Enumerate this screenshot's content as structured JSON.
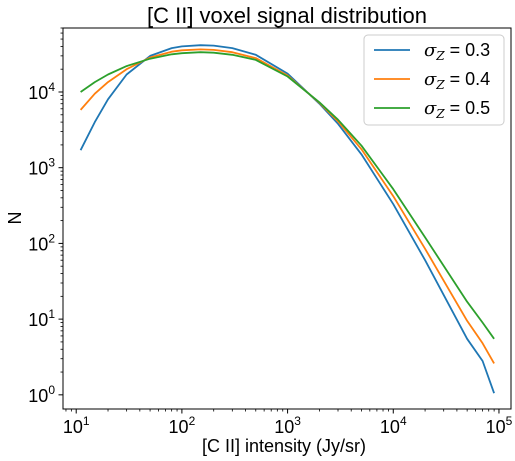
{
  "chart_data": {
    "type": "line",
    "title": "[C II] voxel signal distribution",
    "xlabel": "[C II] intensity (Jy/sr)",
    "ylabel": "N",
    "xscale": "log",
    "yscale": "log",
    "xlim": [
      7.5,
      130000
    ],
    "ylim": [
      0.65,
      70000
    ],
    "grid": false,
    "legend_position": "top-right",
    "x_ticks": [
      {
        "base": "10",
        "exp": "1",
        "value": 10
      },
      {
        "base": "10",
        "exp": "2",
        "value": 100
      },
      {
        "base": "10",
        "exp": "3",
        "value": 1000
      },
      {
        "base": "10",
        "exp": "4",
        "value": 10000
      },
      {
        "base": "10",
        "exp": "5",
        "value": 100000
      }
    ],
    "y_ticks": [
      {
        "base": "10",
        "exp": "0",
        "value": 1
      },
      {
        "base": "10",
        "exp": "1",
        "value": 10
      },
      {
        "base": "10",
        "exp": "2",
        "value": 100
      },
      {
        "base": "10",
        "exp": "3",
        "value": 1000
      },
      {
        "base": "10",
        "exp": "4",
        "value": 10000
      }
    ],
    "series": [
      {
        "symbol": "σ",
        "subscript": "Z",
        "suffix": " = 0.3",
        "color": "#1f77b4",
        "x": [
          11,
          15,
          20,
          30,
          50,
          80,
          100,
          150,
          200,
          300,
          500,
          1000,
          2000,
          3000,
          5000,
          10000,
          20000,
          50000,
          70000,
          90000
        ],
        "y": [
          1700,
          4000,
          8000,
          17000,
          30000,
          38000,
          40000,
          41500,
          41000,
          38000,
          31000,
          17500,
          7000,
          3800,
          1500,
          330,
          60,
          5.5,
          2.8,
          1.05
        ]
      },
      {
        "symbol": "σ",
        "subscript": "Z",
        "suffix": " = 0.4",
        "color": "#ff7f0e",
        "x": [
          11,
          15,
          20,
          30,
          50,
          80,
          100,
          150,
          200,
          300,
          500,
          1000,
          2000,
          3000,
          5000,
          10000,
          20000,
          50000,
          70000,
          90000
        ],
        "y": [
          5800,
          9500,
          13500,
          20000,
          28500,
          34000,
          35500,
          36500,
          36000,
          33500,
          28000,
          16500,
          7200,
          4100,
          1750,
          420,
          85,
          9.5,
          4.8,
          2.6
        ]
      },
      {
        "symbol": "σ",
        "subscript": "Z",
        "suffix": " = 0.5",
        "color": "#2ca02c",
        "x": [
          11,
          15,
          20,
          30,
          50,
          80,
          100,
          150,
          200,
          300,
          500,
          1000,
          2000,
          3000,
          5000,
          10000,
          20000,
          50000,
          70000,
          90000
        ],
        "y": [
          10000,
          13500,
          17000,
          22000,
          27500,
          31500,
          32500,
          33500,
          33000,
          31000,
          26500,
          16000,
          7300,
          4300,
          1950,
          520,
          120,
          17,
          9,
          5.5
        ]
      }
    ]
  }
}
